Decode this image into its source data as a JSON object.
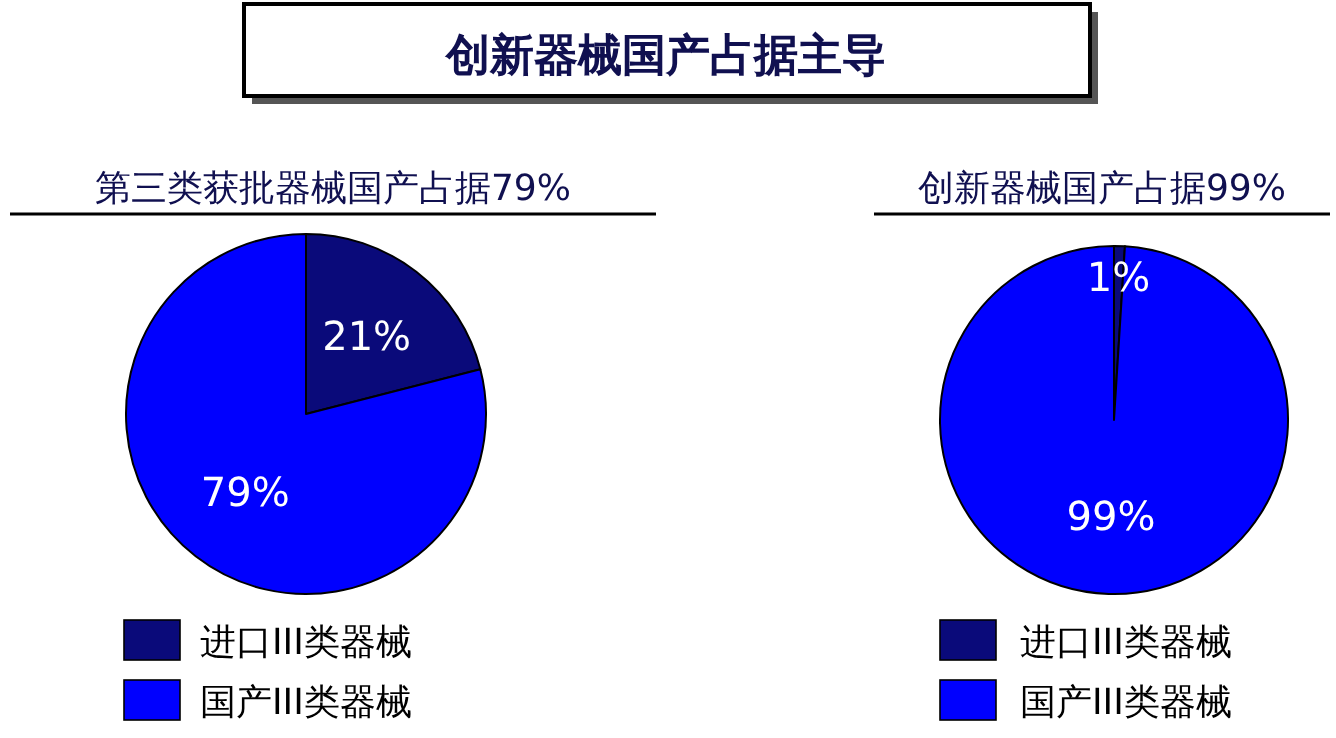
{
  "chart_data": [
    {
      "type": "pie",
      "title": "第三类获批器械国产占据79%",
      "annotations": [
        "创新器械国产占据主导"
      ],
      "categories": [
        "进口III类器械",
        "国产III类器械"
      ],
      "values": [
        21,
        79
      ],
      "value_labels": [
        "21%",
        "79%"
      ],
      "colors": [
        "#0a0a7a",
        "#0000ff"
      ],
      "legend": "bottom"
    },
    {
      "type": "pie",
      "title": "创新器械国产占据99%",
      "categories": [
        "进口III类器械",
        "国产III类器械"
      ],
      "values": [
        1,
        99
      ],
      "value_labels": [
        "1%",
        "99%"
      ],
      "colors": [
        "#0a0a7a",
        "#0000ff"
      ],
      "legend": "bottom"
    }
  ]
}
